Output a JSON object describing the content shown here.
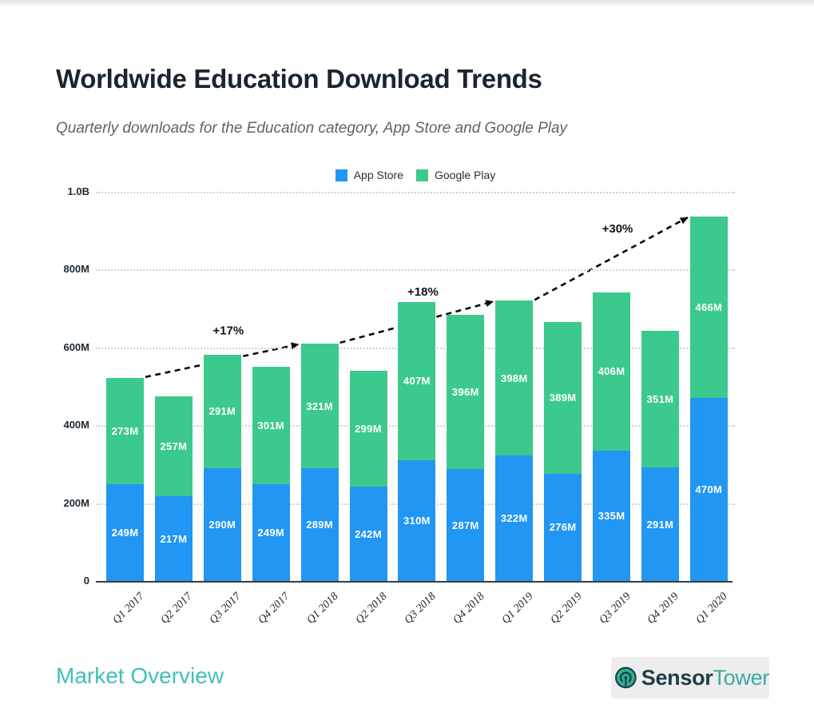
{
  "header": {
    "title": "Worldwide Education Download Trends",
    "subtitle": "Quarterly downloads for the Education category, App Store and Google Play"
  },
  "footer": {
    "section": "Market Overview",
    "brand_bold": "Sensor",
    "brand_light": "Tower"
  },
  "chart_data": {
    "type": "bar",
    "stacked": true,
    "title": "Worldwide Education Download Trends",
    "categories": [
      "Q1 2017",
      "Q2 2017",
      "Q3 2017",
      "Q4 2017",
      "Q1 2018",
      "Q2 2018",
      "Q3 2018",
      "Q4 2018",
      "Q1 2019",
      "Q2 2019",
      "Q3 2019",
      "Q4 2019",
      "Q1 2020"
    ],
    "series": [
      {
        "name": "App Store",
        "color": "#2196f3",
        "values": [
          249,
          217,
          290,
          249,
          289,
          242,
          310,
          287,
          322,
          276,
          335,
          291,
          470
        ]
      },
      {
        "name": "Google Play",
        "color": "#3cc98d",
        "values": [
          273,
          257,
          291,
          301,
          321,
          299,
          407,
          396,
          398,
          389,
          406,
          351,
          466
        ]
      }
    ],
    "value_unit": "M",
    "bar_label_format": "{value}M",
    "y_axis": {
      "ticks": [
        {
          "value": 0,
          "label": "0"
        },
        {
          "value": 200,
          "label": "200M"
        },
        {
          "value": 400,
          "label": "400M"
        },
        {
          "value": 600,
          "label": "600M"
        },
        {
          "value": 800,
          "label": "800M"
        },
        {
          "value": 1000,
          "label": "1.0B"
        }
      ],
      "max": 1000,
      "grid": "dotted"
    },
    "legend_position": "top-center",
    "annotations": [
      {
        "label": "+17%",
        "from_category": "Q1 2017",
        "to_category": "Q1 2018"
      },
      {
        "label": "+18%",
        "from_category": "Q1 2018",
        "to_category": "Q1 2019"
      },
      {
        "label": "+30%",
        "from_category": "Q1 2019",
        "to_category": "Q1 2020"
      }
    ],
    "annotation_style": {
      "line": "dashed",
      "color": "#0b0b0b"
    }
  }
}
